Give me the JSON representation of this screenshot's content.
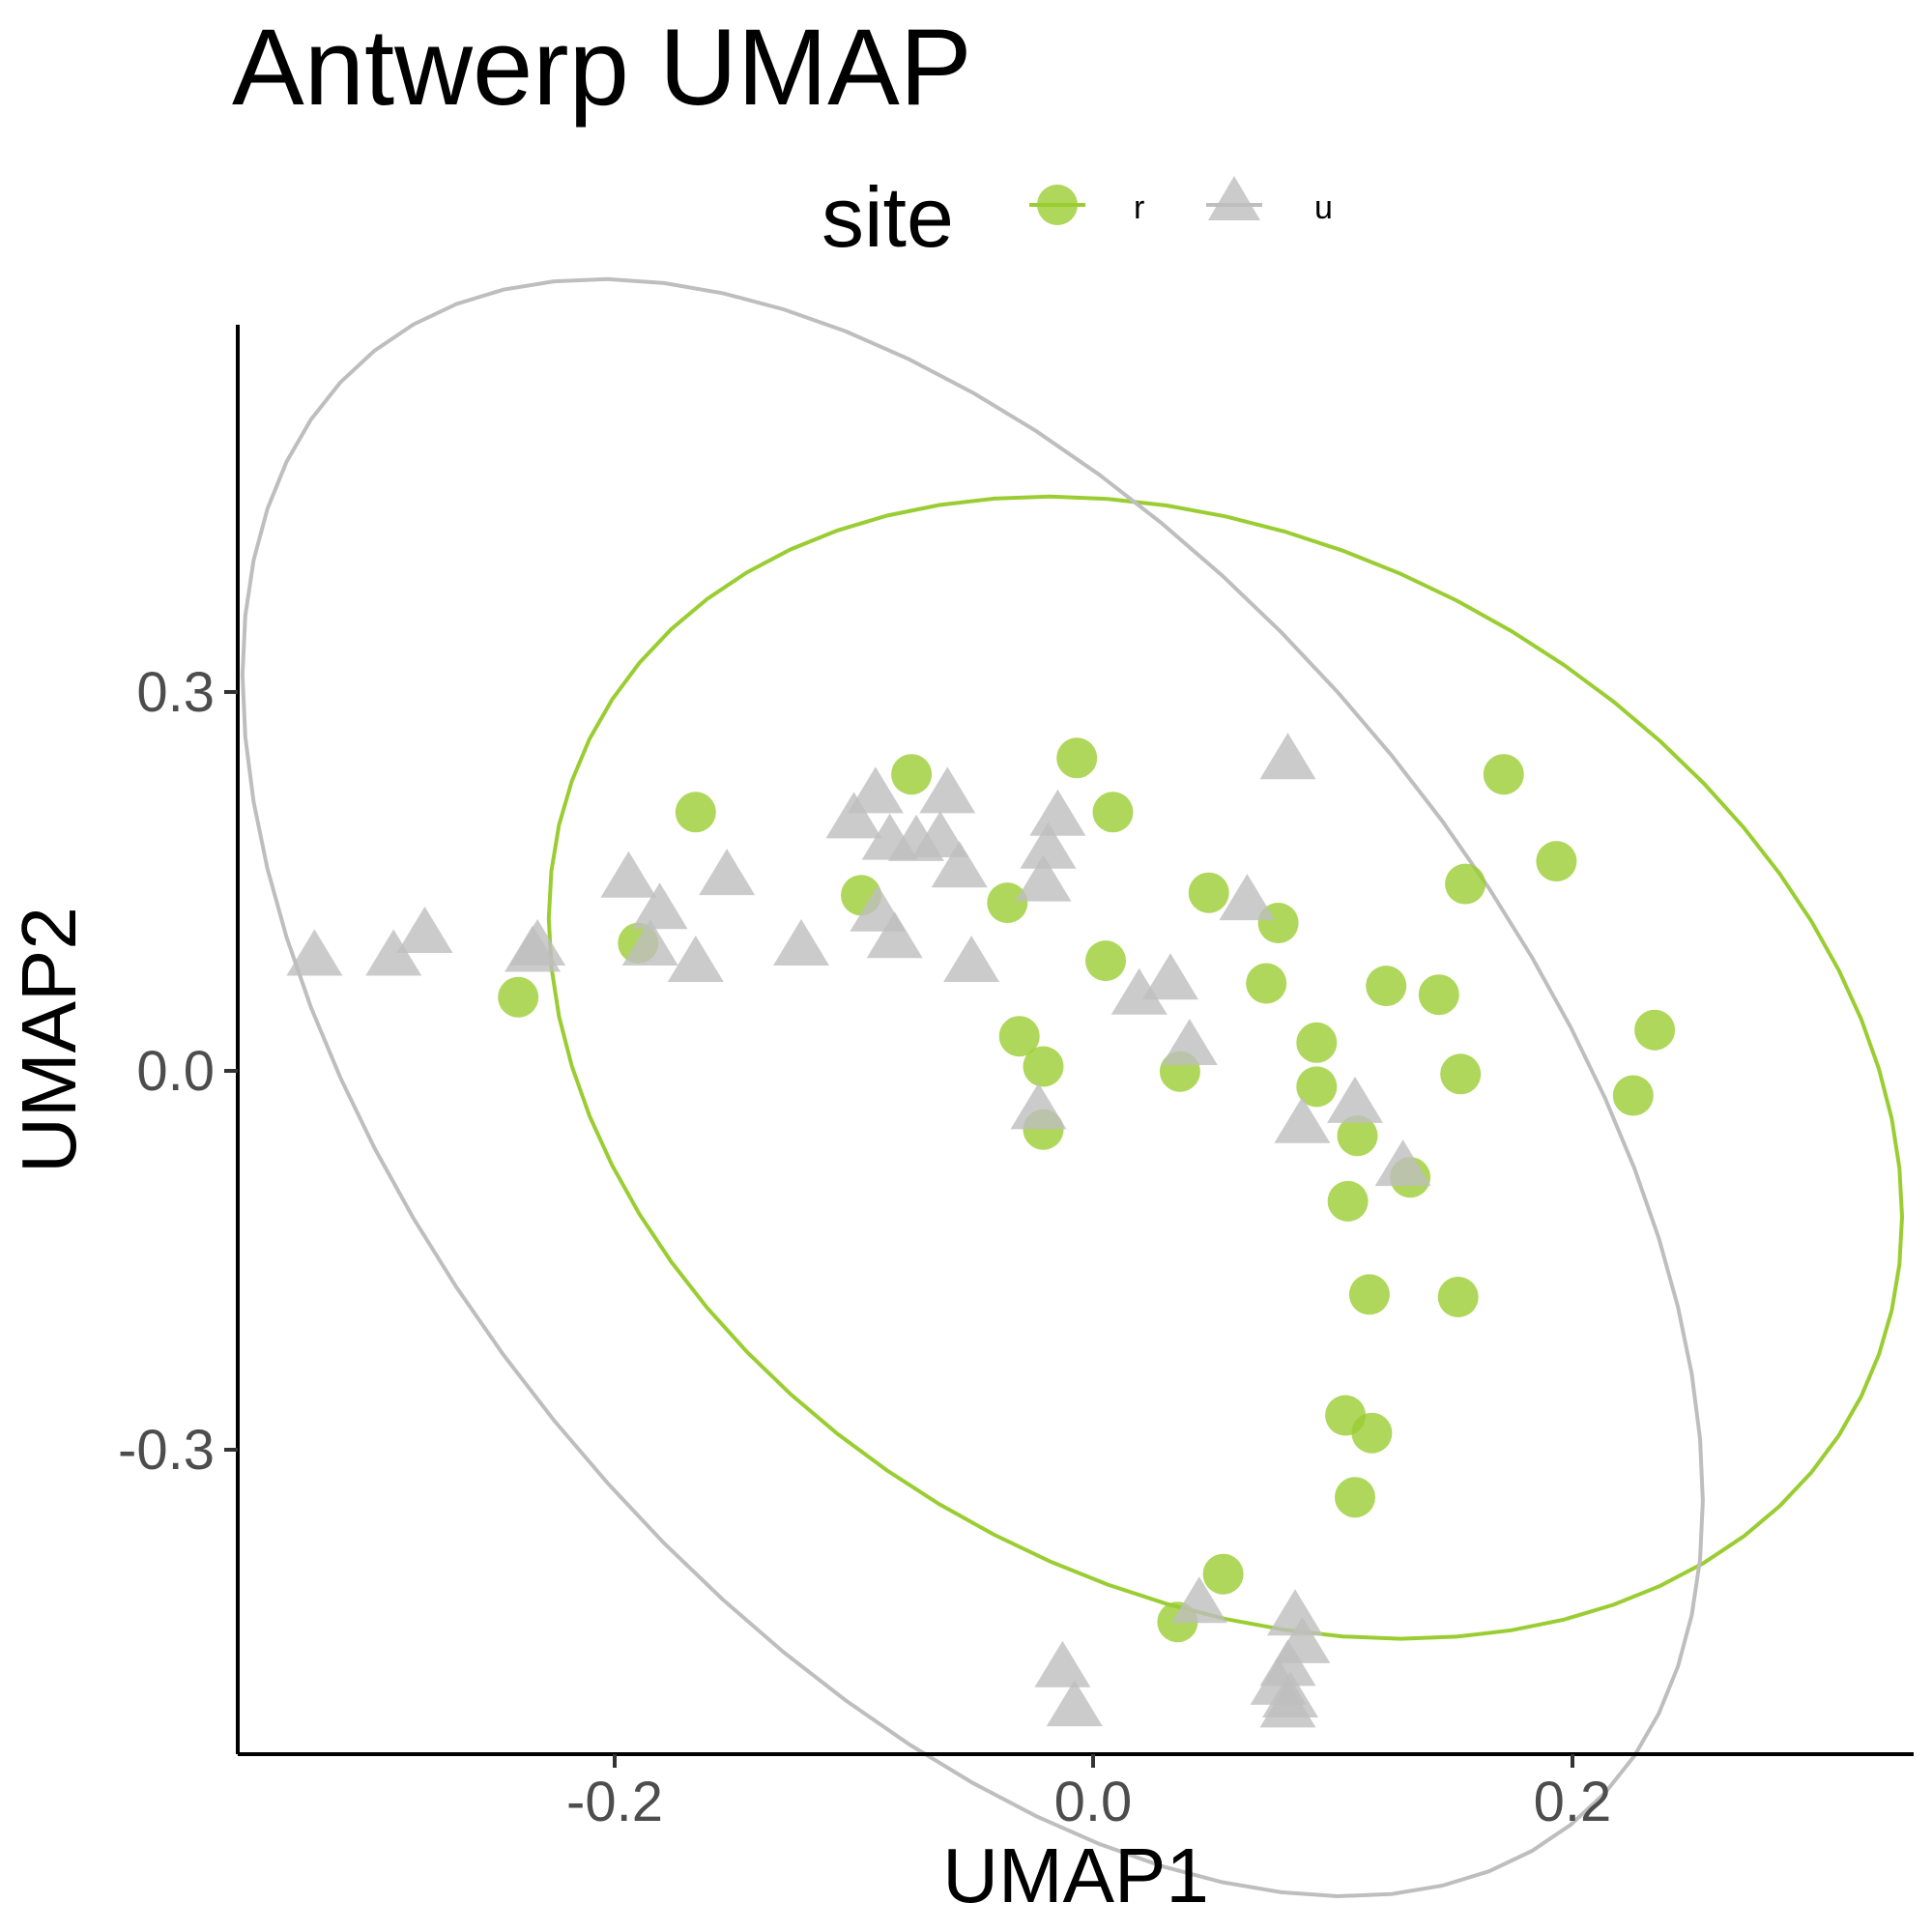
{
  "chart_data": {
    "type": "scatter",
    "title": "Antwerp UMAP",
    "xlabel": "UMAP1",
    "ylabel": "UMAP2",
    "xlim": [
      -0.354,
      0.345
    ],
    "ylim": [
      -0.543,
      0.592
    ],
    "x_ticks": [
      "-0.2",
      "0.0",
      "0.2"
    ],
    "y_ticks": [
      "-0.3",
      "0.0",
      "0.3"
    ],
    "grid": false,
    "legend": {
      "title": "site",
      "placement": "top",
      "entries": [
        "r",
        "u"
      ]
    },
    "colors": {
      "r": "#9ACD32",
      "u": "#BEBEBE"
    },
    "series": [
      {
        "name": "r",
        "marker": "circle",
        "ellipse": true,
        "x": [
          -0.237,
          -0.163,
          -0.187,
          -0.073,
          -0.094,
          -0.033,
          -0.004,
          0.011,
          -0.028,
          -0.018,
          -0.018,
          0.008,
          0.039,
          0.051,
          0.075,
          0.08,
          0.096,
          0.096,
          0.125,
          0.147,
          0.113,
          0.109,
          0.174,
          0.196,
          0.158,
          0.156,
          0.237,
          0.228,
          0.135,
          0.118,
          0.155,
          0.108,
          0.119,
          0.112,
          0.057,
          0.038
        ],
        "y": [
          0.058,
          0.205,
          0.101,
          0.235,
          0.139,
          0.133,
          0.248,
          0.205,
          0.027,
          0.003,
          -0.047,
          0.087,
          -0.001,
          0.141,
          0.069,
          0.117,
          0.022,
          -0.013,
          0.067,
          0.06,
          -0.052,
          -0.104,
          0.235,
          0.166,
          0.148,
          -0.003,
          0.032,
          -0.02,
          -0.085,
          -0.178,
          -0.18,
          -0.274,
          -0.288,
          -0.339,
          -0.4,
          -0.438
        ]
      },
      {
        "name": "u",
        "marker": "triangle",
        "ellipse": true,
        "x": [
          -0.322,
          -0.276,
          -0.289,
          -0.229,
          -0.231,
          -0.191,
          -0.178,
          -0.182,
          -0.163,
          -0.15,
          -0.119,
          -0.097,
          -0.088,
          -0.087,
          -0.082,
          -0.08,
          -0.071,
          -0.061,
          -0.058,
          -0.053,
          -0.048,
          -0.012,
          -0.016,
          -0.018,
          0.022,
          0.035,
          0.043,
          0.067,
          0.084,
          -0.02,
          0.09,
          0.112,
          0.132,
          0.047,
          0.087,
          -0.01,
          -0.005,
          0.084,
          0.08,
          0.09,
          0.085,
          0.084
        ],
        "y": [
          0.089,
          0.107,
          0.089,
          0.097,
          0.092,
          0.151,
          0.126,
          0.097,
          0.084,
          0.153,
          0.097,
          0.198,
          0.218,
          0.124,
          0.181,
          0.103,
          0.18,
          0.183,
          0.218,
          0.159,
          0.084,
          0.2,
          0.174,
          0.148,
          0.058,
          0.07,
          0.018,
          0.133,
          0.245,
          -0.033,
          -0.044,
          -0.028,
          -0.078,
          -0.425,
          -0.435,
          -0.476,
          -0.507,
          -0.475,
          -0.49,
          -0.457,
          -0.5,
          -0.508
        ]
      }
    ]
  }
}
